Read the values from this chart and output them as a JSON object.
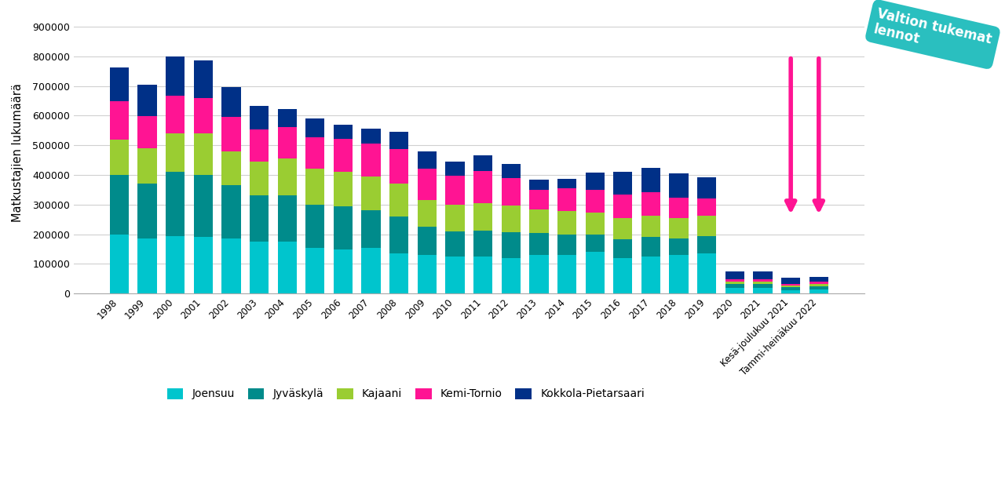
{
  "years": [
    "1998",
    "1999",
    "2000",
    "2001",
    "2002",
    "2003",
    "2004",
    "2005",
    "2006",
    "2007",
    "2008",
    "2009",
    "2010",
    "2011",
    "2012",
    "2013",
    "2014",
    "2015",
    "2016",
    "2017",
    "2018",
    "2019",
    "2020",
    "2021",
    "Kesä-joulukuu 2021",
    "Tammi-heinäkuu 2022"
  ],
  "joensuu": [
    200000,
    185000,
    195000,
    190000,
    185000,
    175000,
    175000,
    155000,
    150000,
    155000,
    135000,
    130000,
    125000,
    125000,
    120000,
    130000,
    130000,
    140000,
    120000,
    125000,
    130000,
    135000,
    18000,
    18000,
    12000,
    14000
  ],
  "jyvaskyla": [
    200000,
    185000,
    215000,
    210000,
    180000,
    155000,
    155000,
    145000,
    145000,
    125000,
    125000,
    95000,
    85000,
    88000,
    88000,
    75000,
    70000,
    60000,
    62000,
    65000,
    57000,
    60000,
    14000,
    14000,
    9000,
    11000
  ],
  "kajaani": [
    120000,
    120000,
    130000,
    140000,
    115000,
    115000,
    125000,
    120000,
    115000,
    115000,
    110000,
    90000,
    90000,
    92000,
    88000,
    78000,
    78000,
    73000,
    73000,
    73000,
    68000,
    67000,
    8000,
    8000,
    6000,
    8000
  ],
  "kemi_tornio": [
    128000,
    108000,
    128000,
    118000,
    115000,
    108000,
    105000,
    108000,
    112000,
    112000,
    118000,
    107000,
    98000,
    108000,
    93000,
    68000,
    76000,
    78000,
    78000,
    78000,
    68000,
    58000,
    8000,
    8000,
    6000,
    8000
  ],
  "kokkola_piet": [
    115000,
    107000,
    132000,
    127000,
    100000,
    80000,
    63000,
    63000,
    48000,
    48000,
    57000,
    57000,
    48000,
    52000,
    48000,
    33000,
    33000,
    57000,
    78000,
    82000,
    82000,
    72000,
    28000,
    28000,
    20000,
    16000
  ],
  "colors": {
    "joensuu": "#00C5CD",
    "jyvaskyla": "#008B8B",
    "kajaani": "#9ACD32",
    "kemi_tornio": "#FF1493",
    "kokkola_piet": "#003087"
  },
  "ylabel": "Matkustajien lukumäärä",
  "ylim": [
    0,
    950000
  ],
  "yticks": [
    0,
    100000,
    200000,
    300000,
    400000,
    500000,
    600000,
    700000,
    800000,
    900000
  ],
  "ytick_labels": [
    "0",
    "100000",
    "200000",
    "300000",
    "400000",
    "500000",
    "600000",
    "700000",
    "800000",
    "900000"
  ],
  "legend_labels": [
    "Joensuu",
    "Jyväskylä",
    "Kajaani",
    "Kemi-Tornio",
    "Kokkola-Pietarsaari"
  ],
  "annotation_text": "Valtion tukemat\nlennot",
  "annotation_color": "#2ABFBF",
  "arrow_color": "#FF1493"
}
